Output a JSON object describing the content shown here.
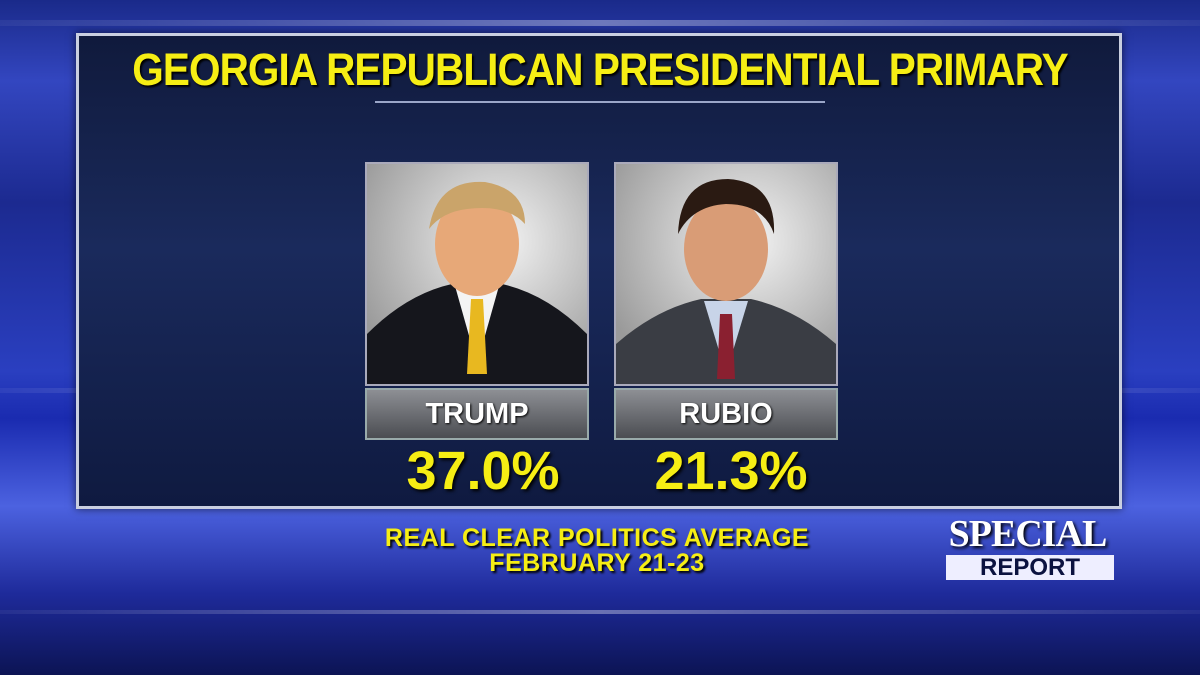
{
  "header": {
    "title": "GEORGIA REPUBLICAN PRESIDENTIAL PRIMARY"
  },
  "candidates": [
    {
      "name": "TRUMP",
      "percent": "37.0%"
    },
    {
      "name": "RUBIO",
      "percent": "21.3%"
    }
  ],
  "source": {
    "lines": [
      "REAL CLEAR POLITICS AVERAGE",
      "FEBRUARY 21-23"
    ]
  },
  "logo": {
    "line1": "SPECIAL",
    "line2": "REPORT"
  }
}
